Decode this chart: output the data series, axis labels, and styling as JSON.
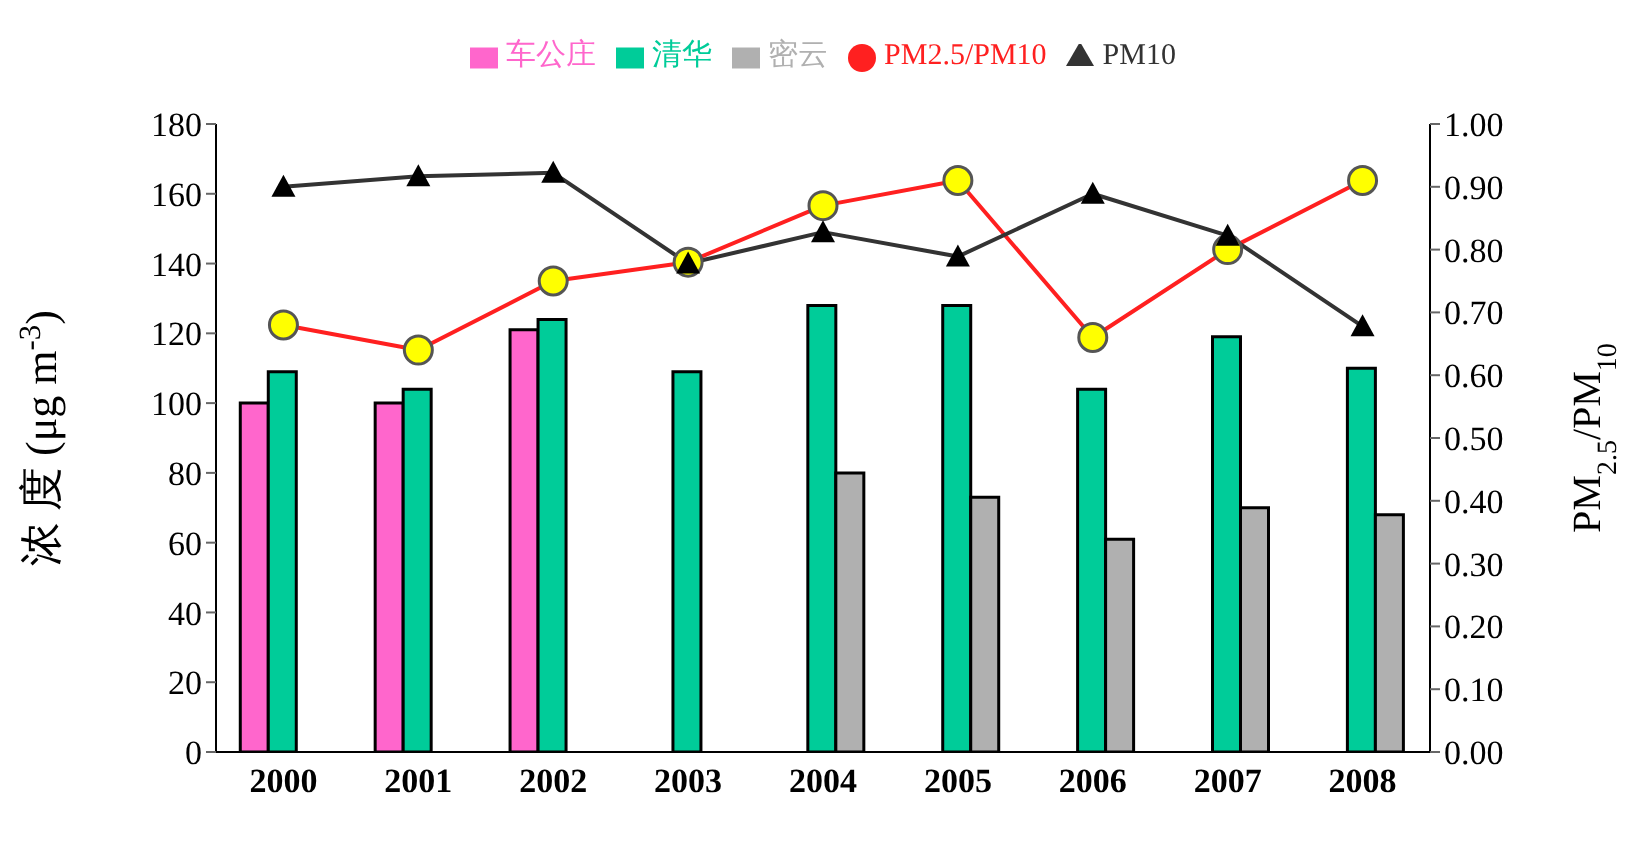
{
  "chart_data": {
    "type": "bar",
    "categories": [
      "2000",
      "2001",
      "2002",
      "2003",
      "2004",
      "2005",
      "2006",
      "2007",
      "2008"
    ],
    "ylabel": "浓 度 (μg m$^{-3}$)",
    "y2label": "PM$_{2.5}$/PM$_{10}$",
    "ylim": [
      0,
      180
    ],
    "yticks": [
      0,
      20,
      40,
      60,
      80,
      100,
      120,
      140,
      160,
      180
    ],
    "y2lim": [
      0,
      1
    ],
    "y2ticks": [
      {
        "value": 0,
        "label": "0.00"
      },
      {
        "value": 0.1,
        "label": "0.10"
      },
      {
        "value": 0.2,
        "label": "0.20"
      },
      {
        "value": 0.3,
        "label": "0.30"
      },
      {
        "value": 0.4,
        "label": "0.40"
      },
      {
        "value": 0.5,
        "label": "0.50"
      },
      {
        "value": 0.6,
        "label": "0.60"
      },
      {
        "value": 0.7,
        "label": "0.70"
      },
      {
        "value": 0.8,
        "label": "0.80"
      },
      {
        "value": 0.9,
        "label": "0.90"
      },
      {
        "value": 1,
        "label": "1.00"
      }
    ],
    "legend": "top",
    "line_style": "solid",
    "series": [
      {
        "name": "车公庄",
        "color": "#ff66cc",
        "values": [
          100,
          100,
          121,
          null,
          null,
          null,
          null,
          null,
          null
        ]
      },
      {
        "name": "清华",
        "color": "#00cc99",
        "values": [
          109,
          104,
          124,
          109,
          128,
          128,
          104,
          119,
          110
        ]
      },
      {
        "name": "密云",
        "color": "#b0b0b0",
        "values": [
          null,
          null,
          null,
          null,
          80,
          73,
          61,
          70,
          68
        ]
      },
      {
        "name": "PM2.5/PM10",
        "type": "line",
        "axis": "y2",
        "marker": "circle",
        "color": "#ff2020",
        "values": [
          0.68,
          0.64,
          0.75,
          0.78,
          0.87,
          0.91,
          0.66,
          0.8,
          0.91
        ]
      },
      {
        "name": "PM10",
        "type": "line",
        "marker": "triangle",
        "color": "#333333",
        "values": [
          162,
          165,
          166,
          140,
          149,
          142,
          160,
          148,
          122
        ]
      }
    ]
  }
}
